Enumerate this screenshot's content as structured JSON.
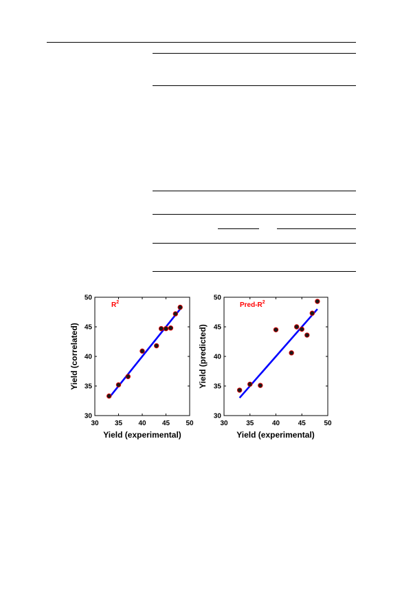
{
  "colors": {
    "line": "#0000ff",
    "marker_fill": "#1a1a1a",
    "marker_edge": "#d40000",
    "annotation": "#ff0000"
  },
  "chart_data": [
    {
      "type": "scatter",
      "annotation": "R",
      "annotation_superscript": "2",
      "xlabel": "Yield (experimental)",
      "ylabel": "Yield (correlated)",
      "xlim": [
        30,
        50
      ],
      "ylim": [
        30,
        50
      ],
      "x_ticks": [
        30,
        35,
        40,
        45,
        50
      ],
      "y_ticks": [
        30,
        35,
        40,
        45,
        50
      ],
      "grid": false,
      "points": [
        {
          "x": 33.0,
          "y": 33.3
        },
        {
          "x": 35.0,
          "y": 35.2
        },
        {
          "x": 37.0,
          "y": 36.6
        },
        {
          "x": 40.0,
          "y": 40.9
        },
        {
          "x": 43.0,
          "y": 41.8
        },
        {
          "x": 44.0,
          "y": 44.7
        },
        {
          "x": 45.0,
          "y": 44.7
        },
        {
          "x": 46.0,
          "y": 44.8
        },
        {
          "x": 47.0,
          "y": 47.2
        },
        {
          "x": 48.0,
          "y": 48.3
        }
      ],
      "fit_line": {
        "x": [
          33,
          48
        ],
        "y": [
          33,
          48
        ]
      }
    },
    {
      "type": "scatter",
      "annotation": "Pred-R",
      "annotation_superscript": "2",
      "xlabel": "Yield (experimental)",
      "ylabel": "Yield (predicted)",
      "xlim": [
        30,
        50
      ],
      "ylim": [
        30,
        50
      ],
      "x_ticks": [
        30,
        35,
        40,
        45,
        50
      ],
      "y_ticks": [
        30,
        35,
        40,
        45,
        50
      ],
      "grid": false,
      "points": [
        {
          "x": 33.0,
          "y": 34.3
        },
        {
          "x": 35.0,
          "y": 35.3
        },
        {
          "x": 37.0,
          "y": 35.1
        },
        {
          "x": 40.0,
          "y": 44.5
        },
        {
          "x": 43.0,
          "y": 40.6
        },
        {
          "x": 44.0,
          "y": 45.0
        },
        {
          "x": 45.0,
          "y": 44.6
        },
        {
          "x": 46.0,
          "y": 43.6
        },
        {
          "x": 47.0,
          "y": 47.3
        },
        {
          "x": 48.0,
          "y": 49.3
        }
      ],
      "fit_line": {
        "x": [
          33,
          48
        ],
        "y": [
          33,
          48
        ]
      }
    }
  ]
}
